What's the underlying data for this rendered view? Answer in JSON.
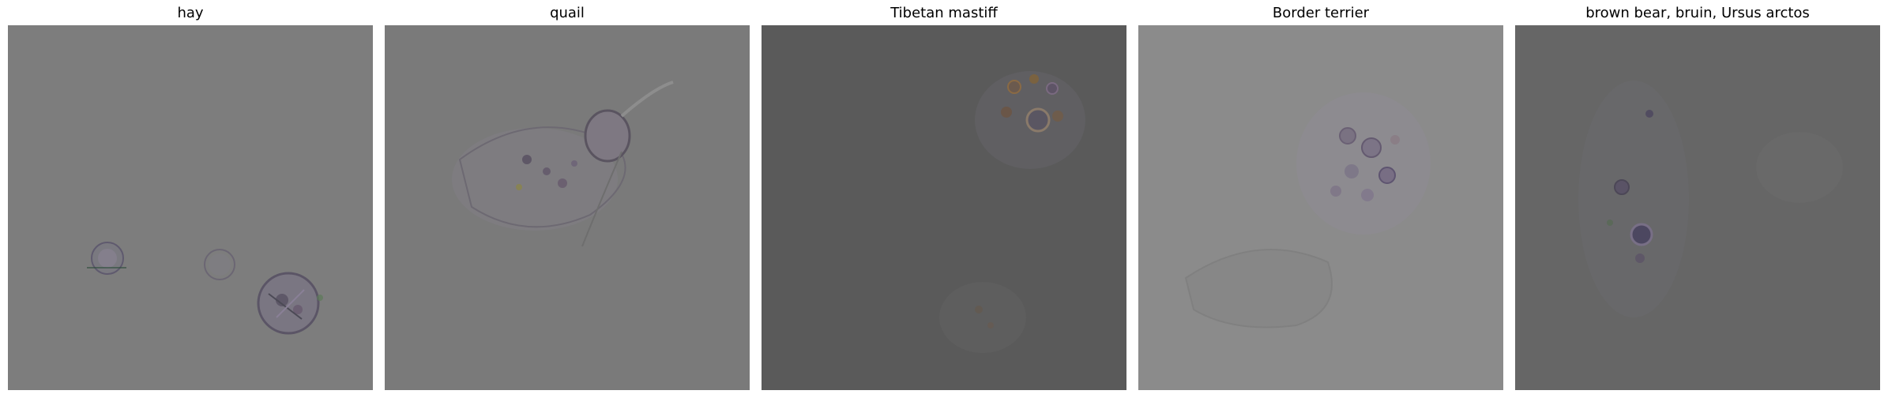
{
  "panels": [
    {
      "title": "hay",
      "background": "#7d7d7d"
    },
    {
      "title": "quail",
      "background": "#7a7a7a"
    },
    {
      "title": "Tibetan mastiff",
      "background": "#5a5a5a"
    },
    {
      "title": "Border terrier",
      "background": "#8b8b8b"
    },
    {
      "title": "brown bear, bruin, Ursus arctos",
      "background": "#666666"
    }
  ]
}
